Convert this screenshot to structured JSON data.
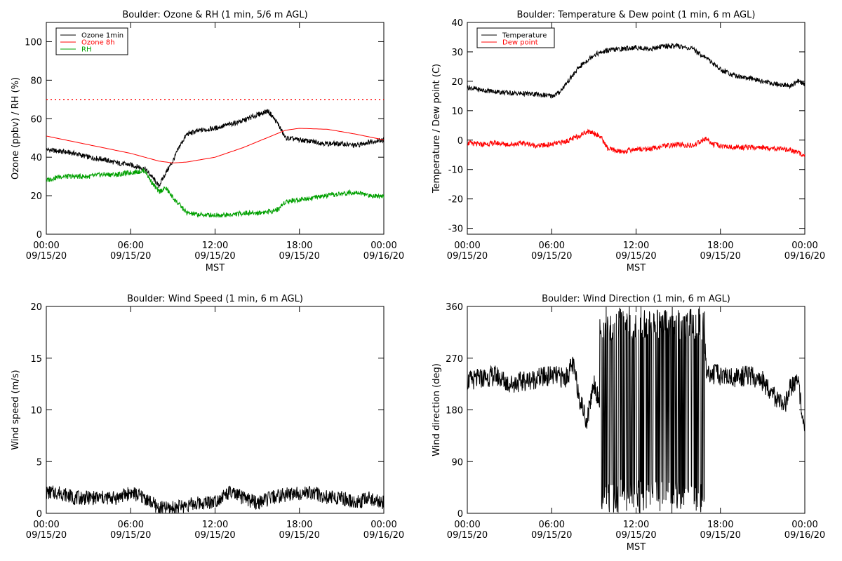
{
  "chart_data": [
    {
      "type": "line",
      "title": "Boulder: Ozone & RH (1 min, 5/6 m AGL)",
      "xlabel": "MST",
      "ylabel": "Ozone (ppbv) / RH (%)",
      "xlim": [
        "09/15/20 00:00",
        "09/16/20 00:00"
      ],
      "xticks": [
        {
          "time": "00:00",
          "date": "09/15/20"
        },
        {
          "time": "06:00",
          "date": "09/15/20"
        },
        {
          "time": "12:00",
          "date": "09/15/20"
        },
        {
          "time": "18:00",
          "date": "09/15/20"
        },
        {
          "time": "00:00",
          "date": "09/16/20"
        }
      ],
      "ylim": [
        0,
        110
      ],
      "yticks": [
        0,
        20,
        40,
        60,
        80,
        100
      ],
      "legend": "top-left",
      "reference_lines": [
        {
          "y": 70,
          "color": "#ff0000",
          "style": "dotted"
        }
      ],
      "series": [
        {
          "name": "Ozone 1min",
          "color": "#000000",
          "x": [
            "00:00",
            "01:00",
            "02:00",
            "03:00",
            "04:00",
            "05:00",
            "06:00",
            "07:00",
            "07:30",
            "08:00",
            "08:30",
            "09:00",
            "09:30",
            "10:00",
            "11:00",
            "12:00",
            "13:00",
            "14:00",
            "15:00",
            "15:45",
            "16:00",
            "16:30",
            "17:00",
            "18:00",
            "19:00",
            "20:00",
            "21:00",
            "22:00",
            "23:00",
            "24:00"
          ],
          "y": [
            44,
            43,
            42,
            40,
            39,
            37,
            36,
            34,
            30,
            25,
            32,
            38,
            46,
            52,
            54,
            55,
            57,
            59,
            62,
            64,
            62,
            57,
            50,
            49,
            48,
            47,
            47,
            46,
            48,
            49
          ]
        },
        {
          "name": "Ozone 8h",
          "color": "#ff0000",
          "x": [
            "00:00",
            "02:00",
            "04:00",
            "06:00",
            "08:00",
            "09:00",
            "10:00",
            "12:00",
            "14:00",
            "16:00",
            "17:00",
            "18:00",
            "20:00",
            "22:00",
            "24:00"
          ],
          "y": [
            51,
            48,
            45,
            42,
            38,
            37,
            37.5,
            40,
            45,
            51,
            54,
            55,
            54.5,
            52,
            49
          ]
        },
        {
          "name": "RH",
          "color": "#00a000",
          "x": [
            "00:00",
            "01:00",
            "02:00",
            "03:00",
            "04:00",
            "05:00",
            "06:00",
            "07:00",
            "07:30",
            "08:00",
            "08:30",
            "09:00",
            "09:30",
            "10:00",
            "11:00",
            "12:00",
            "13:00",
            "14:00",
            "15:00",
            "16:00",
            "16:30",
            "17:00",
            "18:00",
            "19:00",
            "20:00",
            "21:00",
            "22:00",
            "23:00",
            "24:00"
          ],
          "y": [
            28,
            30,
            30,
            30,
            31,
            31,
            32,
            33,
            27,
            22,
            24,
            19,
            15,
            11,
            10,
            10,
            10,
            11,
            11,
            12,
            13,
            17,
            18,
            19,
            20,
            21,
            22,
            20,
            20
          ]
        }
      ]
    },
    {
      "type": "line",
      "title": "Boulder: Temperature & Dew point (1 min, 6 m AGL)",
      "xlabel": "MST",
      "ylabel": "Temperature / Dew point (C)",
      "xlim": [
        "09/15/20 00:00",
        "09/16/20 00:00"
      ],
      "xticks": [
        {
          "time": "00:00",
          "date": "09/15/20"
        },
        {
          "time": "06:00",
          "date": "09/15/20"
        },
        {
          "time": "12:00",
          "date": "09/15/20"
        },
        {
          "time": "18:00",
          "date": "09/15/20"
        },
        {
          "time": "00:00",
          "date": "09/16/20"
        }
      ],
      "ylim": [
        -32,
        40
      ],
      "yticks": [
        -30,
        -20,
        -10,
        0,
        10,
        20,
        30,
        40
      ],
      "legend": "top-left",
      "series": [
        {
          "name": "Temperature",
          "color": "#000000",
          "x": [
            "00:00",
            "01:00",
            "02:00",
            "03:00",
            "04:00",
            "05:00",
            "06:00",
            "06:30",
            "07:00",
            "08:00",
            "09:00",
            "10:00",
            "11:00",
            "12:00",
            "13:00",
            "14:00",
            "15:00",
            "16:00",
            "17:00",
            "18:00",
            "19:00",
            "20:00",
            "21:00",
            "22:00",
            "23:00",
            "23:30",
            "24:00"
          ],
          "y": [
            18,
            17,
            16.5,
            16,
            15.8,
            15.5,
            15,
            16,
            19,
            25,
            29,
            30.5,
            31,
            31.5,
            31,
            32,
            32,
            31,
            28,
            24,
            22,
            21,
            20,
            19,
            18.5,
            20,
            19
          ]
        },
        {
          "name": "Dew point",
          "color": "#ff0000",
          "x": [
            "00:00",
            "01:00",
            "02:00",
            "03:00",
            "04:00",
            "05:00",
            "06:00",
            "07:00",
            "08:00",
            "08:30",
            "09:00",
            "09:30",
            "10:00",
            "11:00",
            "12:00",
            "13:00",
            "14:00",
            "15:00",
            "16:00",
            "17:00",
            "17:30",
            "18:00",
            "19:00",
            "20:00",
            "21:00",
            "22:00",
            "23:00",
            "24:00"
          ],
          "y": [
            -1,
            -1.5,
            -1,
            -1.5,
            -1,
            -2,
            -1.5,
            -0.5,
            1.5,
            3,
            2.5,
            1,
            -3,
            -4,
            -3,
            -3,
            -2,
            -1.5,
            -2,
            0.5,
            -1.5,
            -2,
            -2.5,
            -2.5,
            -2.5,
            -3,
            -3.5,
            -5
          ]
        }
      ]
    },
    {
      "type": "line",
      "title": "Boulder: Wind Speed (1 min, 6 m AGL)",
      "xlabel": "",
      "ylabel": "Wind speed (m/s)",
      "xlim": [
        "09/15/20 00:00",
        "09/16/20 00:00"
      ],
      "xticks": [
        {
          "time": "00:00",
          "date": "09/15/20"
        },
        {
          "time": "06:00",
          "date": "09/15/20"
        },
        {
          "time": "12:00",
          "date": "09/15/20"
        },
        {
          "time": "18:00",
          "date": "09/15/20"
        },
        {
          "time": "00:00",
          "date": "09/16/20"
        }
      ],
      "ylim": [
        0,
        20
      ],
      "yticks": [
        0,
        5,
        10,
        15,
        20
      ],
      "series": [
        {
          "color": "#000000",
          "x": [
            "00:00",
            "01:00",
            "02:00",
            "03:00",
            "04:00",
            "05:00",
            "06:00",
            "07:00",
            "08:00",
            "09:00",
            "10:00",
            "11:00",
            "12:00",
            "13:00",
            "14:00",
            "15:00",
            "16:00",
            "17:00",
            "18:00",
            "19:00",
            "20:00",
            "21:00",
            "22:00",
            "23:00",
            "24:00"
          ],
          "y": [
            2,
            2,
            1.5,
            1.5,
            1.5,
            1.5,
            2,
            1.5,
            0.5,
            0.5,
            0.8,
            1,
            1.2,
            2,
            1.5,
            1,
            1.5,
            1.8,
            2,
            2,
            1.5,
            1.5,
            1,
            1.5,
            1
          ]
        }
      ]
    },
    {
      "type": "line",
      "title": "Boulder: Wind Direction (1 min, 6 m AGL)",
      "xlabel": "MST",
      "ylabel": "Wind direction (deg)",
      "xlim": [
        "09/15/20 00:00",
        "09/16/20 00:00"
      ],
      "xticks": [
        {
          "time": "00:00",
          "date": "09/15/20"
        },
        {
          "time": "06:00",
          "date": "09/15/20"
        },
        {
          "time": "12:00",
          "date": "09/15/20"
        },
        {
          "time": "18:00",
          "date": "09/15/20"
        },
        {
          "time": "00:00",
          "date": "09/16/20"
        }
      ],
      "ylim": [
        0,
        360
      ],
      "yticks": [
        0,
        90,
        180,
        270,
        360
      ],
      "series": [
        {
          "color": "#000000",
          "x": [
            "00:00",
            "01:00",
            "02:00",
            "03:00",
            "04:00",
            "05:00",
            "06:00",
            "07:00",
            "07:30",
            "08:00",
            "08:30",
            "09:00",
            "09:30",
            "10:00",
            "11:00",
            "12:00",
            "13:00",
            "14:00",
            "15:00",
            "16:00",
            "16:45",
            "17:00",
            "18:00",
            "19:00",
            "20:00",
            "21:00",
            "22:00",
            "22:30",
            "23:00",
            "23:30",
            "24:00"
          ],
          "y": [
            230,
            235,
            240,
            225,
            230,
            235,
            240,
            235,
            260,
            200,
            160,
            230,
            180,
            350,
            20,
            300,
            80,
            340,
            40,
            200,
            360,
            245,
            240,
            235,
            240,
            230,
            200,
            180,
            220,
            230,
            150
          ]
        }
      ]
    }
  ]
}
